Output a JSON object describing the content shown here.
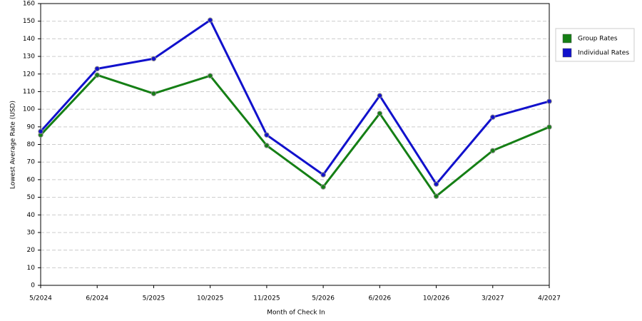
{
  "chart_data": {
    "type": "line",
    "x_label": "Month of Check In",
    "y_label": "Lowest Average Rate (USD)",
    "categories": [
      "5/2024",
      "6/2024",
      "5/2025",
      "10/2025",
      "11/2025",
      "5/2026",
      "6/2026",
      "10/2026",
      "3/2027",
      "4/2027"
    ],
    "series": [
      {
        "name": "Group Rates",
        "color": "#157f15",
        "values": [
          85.4,
          119.4,
          108.9,
          119,
          79.4,
          55.9,
          97.6,
          50.6,
          76.5,
          89.9
        ]
      },
      {
        "name": "Individual Rates",
        "color": "#1111cc",
        "values": [
          87.4,
          123,
          128.7,
          150.6,
          85.4,
          62.8,
          107.7,
          57.5,
          95.5,
          104.5
        ]
      }
    ],
    "ylim": [
      0,
      160
    ],
    "yticks": [
      0,
      10,
      20,
      30,
      40,
      50,
      60,
      70,
      80,
      90,
      100,
      110,
      120,
      130,
      140,
      150,
      160
    ],
    "grid": true,
    "legend": "right"
  }
}
